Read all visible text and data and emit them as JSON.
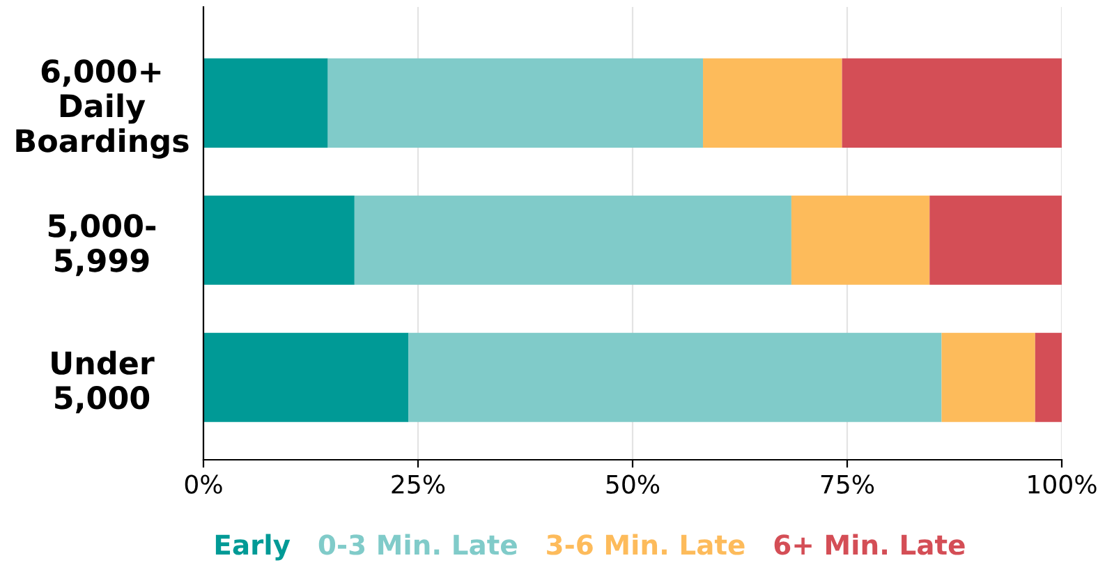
{
  "chart_data": {
    "type": "bar",
    "orientation": "horizontal",
    "stacked": true,
    "categories": [
      "6,000+\nDaily\nBoardings",
      "5,000-\n5,999",
      "Under\n5,000"
    ],
    "series": [
      {
        "name": "Early",
        "color": "#009a96",
        "values": [
          14.5,
          17.6,
          23.9
        ]
      },
      {
        "name": "0-3 Min. Late",
        "color": "#80cbc9",
        "values": [
          43.7,
          50.9,
          62.1
        ]
      },
      {
        "name": "3-6 Min. Late",
        "color": "#fdbb5b",
        "values": [
          16.2,
          16.1,
          10.9
        ]
      },
      {
        "name": "6+ Min. Late",
        "color": "#d44e56",
        "values": [
          25.6,
          15.4,
          3.1
        ]
      }
    ],
    "xlim": [
      0,
      100
    ],
    "xticks": [
      {
        "value": 0,
        "label": "0%"
      },
      {
        "value": 25,
        "label": "25%"
      },
      {
        "value": 50,
        "label": "50%"
      },
      {
        "value": 75,
        "label": "75%"
      },
      {
        "value": 100,
        "label": "100%"
      }
    ],
    "grid": "x",
    "legend": "bottom"
  }
}
